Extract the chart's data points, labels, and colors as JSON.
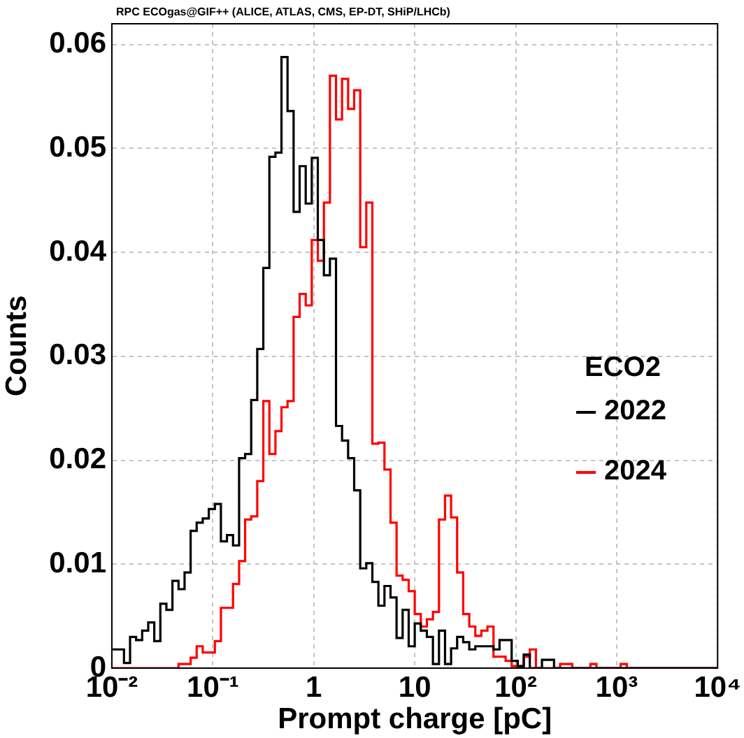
{
  "chart_data": {
    "type": "histogram",
    "title": "RPC ECOgas@GIF++ (ALICE, ATLAS, CMS, EP-DT, SHiP/LHCb)",
    "xlabel": "Prompt charge [pC]",
    "ylabel": "Counts",
    "legend_title": "ECO2",
    "bins": [
      0.01,
      0.01148,
      0.01318,
      0.01514,
      0.01738,
      0.01995,
      0.02291,
      0.0263,
      0.0302,
      0.03467,
      0.03981,
      0.04571,
      0.05248,
      0.06026,
      0.06918,
      0.07943,
      0.0912,
      0.1047,
      0.1202,
      0.138,
      0.1585,
      0.182,
      0.2089,
      0.2399,
      0.2754,
      0.3162,
      0.3631,
      0.4169,
      0.4786,
      0.5495,
      0.631,
      0.7244,
      0.8318,
      0.955,
      1.096,
      1.259,
      1.445,
      1.66,
      1.905,
      2.188,
      2.512,
      2.884,
      3.311,
      3.802,
      4.365,
      5.012,
      5.754,
      6.607,
      7.586,
      8.71,
      10,
      11.48,
      13.18,
      15.14,
      17.38,
      19.95,
      22.91,
      26.3,
      30.2,
      34.67,
      39.81,
      45.71,
      52.48,
      60.26,
      69.18,
      79.43,
      91.2,
      104.7,
      120.2,
      138,
      158.5,
      182,
      208.9,
      239.9,
      275.4,
      316.2,
      363.1,
      416.9,
      478.6,
      549.5,
      631,
      724.4,
      831.8,
      955,
      1096,
      1259,
      1445,
      1660,
      1905,
      2188,
      2512,
      2884,
      3311,
      3802,
      4365,
      5012,
      5754,
      6607,
      7586,
      8710,
      10000
    ],
    "series": [
      {
        "name": "2022",
        "color": "#000000",
        "values": [
          0.0018,
          0.0018,
          0.0005,
          0.003,
          0.0027,
          0.0036,
          0.0044,
          0.0026,
          0.0062,
          0.0056,
          0.0084,
          0.0076,
          0.0092,
          0.0132,
          0.014,
          0.0144,
          0.0153,
          0.0158,
          0.0122,
          0.0128,
          0.0118,
          0.0202,
          0.0206,
          0.0258,
          0.0307,
          0.0385,
          0.0492,
          0.0496,
          0.0588,
          0.0536,
          0.0439,
          0.0483,
          0.0447,
          0.0491,
          0.0412,
          0.0378,
          0.0394,
          0.0233,
          0.0219,
          0.0202,
          0.0171,
          0.0096,
          0.0101,
          0.0083,
          0.006,
          0.0079,
          0.0068,
          0.0029,
          0.0056,
          0.0021,
          0.0043,
          0.0036,
          0.003,
          0.0004,
          0.0036,
          0.0004,
          0.0019,
          0.003,
          0.0025,
          0.0018,
          0.0021,
          0.0021,
          0.0021,
          0.0018,
          0.0027,
          0.0027,
          0.0007,
          0.0002,
          0.0013,
          0,
          0,
          0.0008,
          0.0008,
          0,
          0,
          0,
          0,
          0,
          0,
          0,
          0,
          0,
          0,
          0,
          0,
          0,
          0,
          0,
          0,
          0,
          0,
          0,
          0,
          0,
          0,
          0,
          0,
          0,
          0,
          0
        ]
      },
      {
        "name": "2024",
        "color": "#ff0000",
        "values": [
          0,
          0,
          0,
          0,
          0,
          0,
          0,
          0,
          0,
          0,
          0,
          0.0004,
          0.0004,
          0.001,
          0.0021,
          0.0015,
          0.0015,
          0.0026,
          0.0058,
          0.0058,
          0.0081,
          0.0103,
          0.0143,
          0.0146,
          0.018,
          0.0257,
          0.0206,
          0.0228,
          0.0251,
          0.0257,
          0.0338,
          0.036,
          0.0349,
          0.0412,
          0.0392,
          0.0448,
          0.057,
          0.0528,
          0.0567,
          0.0538,
          0.0556,
          0.0405,
          0.0448,
          0.0216,
          0.0217,
          0.0191,
          0.014,
          0.0089,
          0.0085,
          0.0074,
          0.0052,
          0.004,
          0.0047,
          0.0054,
          0.0143,
          0.0166,
          0.0145,
          0.0092,
          0.0052,
          0.004,
          0.0031,
          0.0036,
          0.004,
          0.0011,
          0.0011,
          0.0007,
          0.0002,
          0.0002,
          0.0011,
          0.0018,
          0,
          0,
          0,
          0,
          0.0004,
          0.0004,
          0,
          0,
          0,
          0.0004,
          0,
          0,
          0,
          0,
          0.0004,
          0,
          0,
          0,
          0,
          0,
          0,
          0,
          0,
          0,
          0,
          0,
          0,
          0,
          0,
          0
        ]
      }
    ],
    "log": "x",
    "xlim": [
      0.01,
      10000
    ],
    "ylim": [
      0,
      0.062
    ],
    "xticks": [
      {
        "value": 0.01,
        "label": "10⁻²"
      },
      {
        "value": 0.1,
        "label": "10⁻¹"
      },
      1,
      10,
      {
        "value": 100,
        "label": "10²"
      },
      {
        "value": 1000,
        "label": "10³"
      },
      {
        "value": 10000,
        "label": "10⁴"
      }
    ],
    "yticks": [
      0,
      0.01,
      0.02,
      0.03,
      0.04,
      0.05,
      0.06
    ],
    "grid": true,
    "legend": "right"
  }
}
